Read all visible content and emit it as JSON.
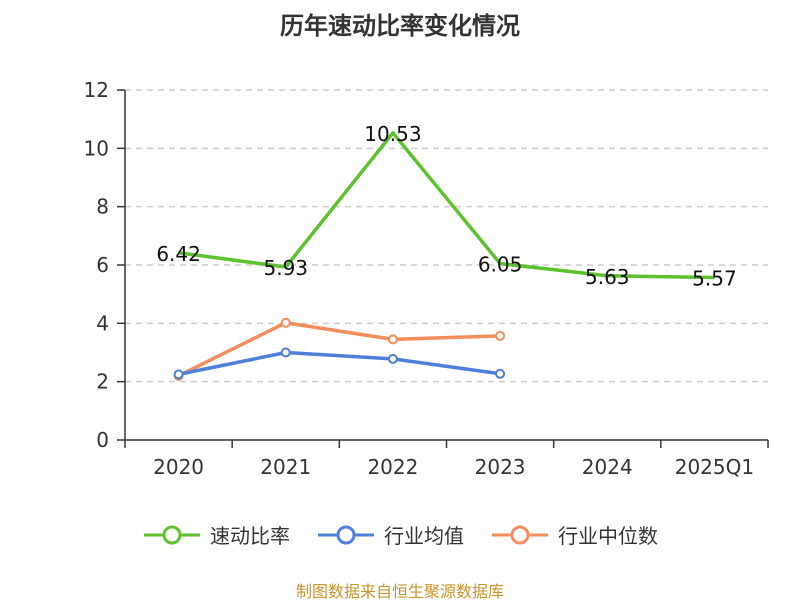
{
  "chart_data": {
    "type": "line",
    "title": "历年速动比率变化情况",
    "categories": [
      "2020",
      "2021",
      "2022",
      "2023",
      "2024",
      "2025Q1"
    ],
    "ylim": [
      0,
      12
    ],
    "yticks": [
      0,
      2,
      4,
      6,
      8,
      10,
      12
    ],
    "grid": "horizontal-dashed",
    "legend_position": "bottom",
    "series": [
      {
        "name": "速动比率",
        "color": "#5ec22e",
        "values": [
          6.42,
          5.93,
          10.53,
          6.05,
          5.63,
          5.57
        ],
        "labels": [
          "6.42",
          "5.93",
          "10.53",
          "6.05",
          "5.63",
          "5.57"
        ]
      },
      {
        "name": "行业均值",
        "color": "#4e7fd9",
        "values": [
          2.25,
          3.0,
          2.78,
          2.27,
          null,
          null
        ]
      },
      {
        "name": "行业中位数",
        "color": "#f28e5c",
        "values": [
          2.2,
          4.02,
          3.45,
          3.57,
          null,
          null
        ]
      }
    ],
    "source": "制图数据来自恒生聚源数据库"
  }
}
